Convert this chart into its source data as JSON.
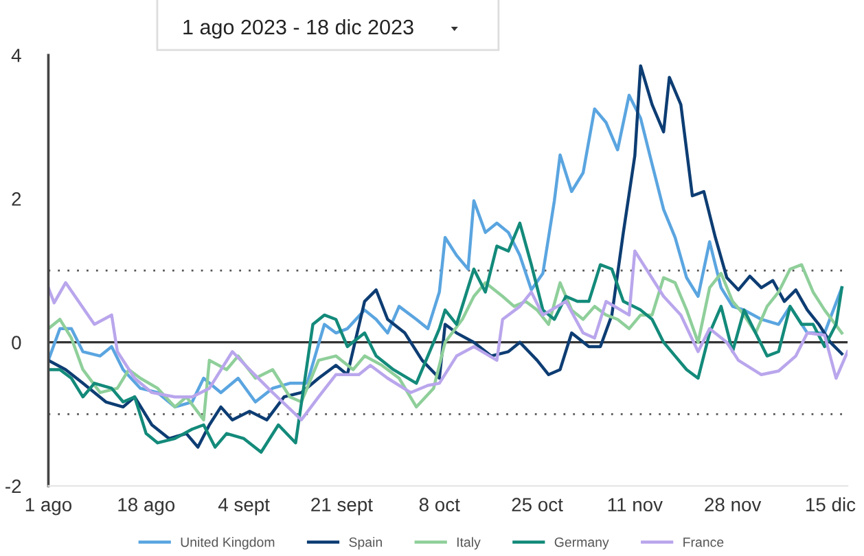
{
  "chart_data": {
    "type": "line",
    "title": "1 ago 2023 - 18 dic 2023",
    "xlim": [
      "2023-08-01",
      "2023-12-18"
    ],
    "xticks": [
      {
        "value": "2023-08-01",
        "label": "1 ago"
      },
      {
        "value": "2023-08-18",
        "label": "18 ago"
      },
      {
        "value": "2023-09-04",
        "label": "4 sept"
      },
      {
        "value": "2023-09-21",
        "label": "21 sept"
      },
      {
        "value": "2023-10-08",
        "label": "8 oct"
      },
      {
        "value": "2023-10-25",
        "label": "25 oct"
      },
      {
        "value": "2023-11-11",
        "label": "11 nov"
      },
      {
        "value": "2023-11-28",
        "label": "28 nov"
      },
      {
        "value": "2023-12-15",
        "label": "15 dic"
      }
    ],
    "ylim": [
      -2,
      4
    ],
    "yticks": [
      -2,
      0,
      2,
      4
    ],
    "grid": false,
    "legend": "bottom",
    "marker": "none",
    "line_style": "solid",
    "ref_lines": [
      {
        "axis": "y",
        "value": 0,
        "color": "#333333",
        "line_style": "solid"
      },
      {
        "axis": "y",
        "value": 1,
        "color": "#555555",
        "line_style": "dotted"
      },
      {
        "axis": "y",
        "value": -1,
        "color": "#555555",
        "line_style": "dotted"
      }
    ],
    "series": [
      {
        "name": "United Kingdom",
        "color": "#5aa5e0",
        "x": [
          "2023-08-01",
          "2023-08-03",
          "2023-08-05",
          "2023-08-07",
          "2023-08-10",
          "2023-08-12",
          "2023-08-14",
          "2023-08-17",
          "2023-08-20",
          "2023-08-23",
          "2023-08-26",
          "2023-08-28",
          "2023-08-31",
          "2023-09-03",
          "2023-09-06",
          "2023-09-09",
          "2023-09-12",
          "2023-09-15",
          "2023-09-18",
          "2023-09-20",
          "2023-09-22",
          "2023-09-25",
          "2023-09-27",
          "2023-09-29",
          "2023-10-01",
          "2023-10-04",
          "2023-10-06",
          "2023-10-08",
          "2023-10-09",
          "2023-10-11",
          "2023-10-13",
          "2023-10-14",
          "2023-10-16",
          "2023-10-18",
          "2023-10-20",
          "2023-10-22",
          "2023-10-24",
          "2023-10-26",
          "2023-10-28",
          "2023-10-29",
          "2023-10-31",
          "2023-11-02",
          "2023-11-04",
          "2023-11-06",
          "2023-11-08",
          "2023-11-10",
          "2023-11-12",
          "2023-11-14",
          "2023-11-16",
          "2023-11-18",
          "2023-11-20",
          "2023-11-22",
          "2023-11-24",
          "2023-11-26",
          "2023-11-28",
          "2023-11-30",
          "2023-12-03",
          "2023-12-06",
          "2023-12-08",
          "2023-12-11",
          "2023-12-14",
          "2023-12-17"
        ],
        "values": [
          -0.25,
          0.19,
          0.19,
          -0.13,
          -0.19,
          -0.06,
          -0.38,
          -0.64,
          -0.7,
          -0.9,
          -0.83,
          -0.5,
          -0.7,
          -0.5,
          -0.83,
          -0.64,
          -0.57,
          -0.57,
          0.25,
          0.13,
          0.19,
          0.45,
          0.32,
          0.13,
          0.5,
          0.32,
          0.19,
          0.7,
          1.46,
          1.21,
          1.02,
          1.97,
          1.53,
          1.66,
          1.53,
          1.21,
          0.73,
          0.96,
          1.97,
          2.61,
          2.1,
          2.36,
          3.25,
          3.06,
          2.68,
          3.44,
          3.12,
          2.48,
          1.85,
          1.46,
          0.9,
          0.64,
          1.4,
          0.76,
          0.5,
          0.45,
          0.32,
          0.25,
          0.5,
          0.13,
          0.13,
          0.76
        ]
      },
      {
        "name": "Spain",
        "color": "#0d3d73",
        "x": [
          "2023-08-01",
          "2023-08-04",
          "2023-08-07",
          "2023-08-11",
          "2023-08-14",
          "2023-08-16",
          "2023-08-19",
          "2023-08-22",
          "2023-08-25",
          "2023-08-27",
          "2023-08-29",
          "2023-08-31",
          "2023-09-02",
          "2023-09-05",
          "2023-09-08",
          "2023-09-11",
          "2023-09-14",
          "2023-09-17",
          "2023-09-20",
          "2023-09-22",
          "2023-09-25",
          "2023-09-27",
          "2023-09-29",
          "2023-10-02",
          "2023-10-05",
          "2023-10-08",
          "2023-10-09",
          "2023-10-11",
          "2023-10-14",
          "2023-10-17",
          "2023-10-20",
          "2023-10-22",
          "2023-10-25",
          "2023-10-27",
          "2023-10-29",
          "2023-10-31",
          "2023-11-03",
          "2023-11-05",
          "2023-11-07",
          "2023-11-09",
          "2023-11-11",
          "2023-11-12",
          "2023-11-14",
          "2023-11-16",
          "2023-11-17",
          "2023-11-19",
          "2023-11-21",
          "2023-11-23",
          "2023-11-25",
          "2023-11-27",
          "2023-11-29",
          "2023-12-01",
          "2023-12-03",
          "2023-12-05",
          "2023-12-07",
          "2023-12-09",
          "2023-12-11",
          "2023-12-13",
          "2023-12-15",
          "2023-12-17"
        ],
        "values": [
          -0.25,
          -0.38,
          -0.57,
          -0.83,
          -0.9,
          -0.76,
          -1.15,
          -1.34,
          -1.27,
          -1.46,
          -1.15,
          -0.9,
          -1.08,
          -0.96,
          -1.08,
          -0.76,
          -0.7,
          -0.5,
          -0.32,
          -0.45,
          0.57,
          0.73,
          0.32,
          0.13,
          -0.25,
          -0.5,
          0.25,
          0.13,
          0,
          -0.19,
          -0.13,
          0,
          -0.25,
          -0.45,
          -0.38,
          0.13,
          -0.06,
          -0.06,
          0.38,
          1.53,
          2.6,
          3.85,
          3.31,
          2.93,
          3.69,
          3.31,
          2.04,
          2.1,
          1.46,
          0.9,
          0.73,
          0.92,
          0.76,
          0.86,
          0.57,
          0.73,
          0.45,
          0.25,
          0,
          -0.16
        ]
      },
      {
        "name": "Italy",
        "color": "#8fcf9a",
        "x": [
          "2023-08-01",
          "2023-08-03",
          "2023-08-05",
          "2023-08-07",
          "2023-08-10",
          "2023-08-13",
          "2023-08-15",
          "2023-08-17",
          "2023-08-20",
          "2023-08-23",
          "2023-08-25",
          "2023-08-28",
          "2023-08-29",
          "2023-09-01",
          "2023-09-03",
          "2023-09-06",
          "2023-09-09",
          "2023-09-12",
          "2023-09-14",
          "2023-09-17",
          "2023-09-20",
          "2023-09-23",
          "2023-09-25",
          "2023-09-28",
          "2023-10-01",
          "2023-10-04",
          "2023-10-07",
          "2023-10-09",
          "2023-10-12",
          "2023-10-14",
          "2023-10-16",
          "2023-10-19",
          "2023-10-21",
          "2023-10-23",
          "2023-10-25",
          "2023-10-27",
          "2023-10-29",
          "2023-10-31",
          "2023-11-02",
          "2023-11-04",
          "2023-11-06",
          "2023-11-08",
          "2023-11-10",
          "2023-11-12",
          "2023-11-14",
          "2023-11-16",
          "2023-11-18",
          "2023-11-20",
          "2023-11-22",
          "2023-11-24",
          "2023-11-26",
          "2023-11-28",
          "2023-11-30",
          "2023-12-02",
          "2023-12-04",
          "2023-12-06",
          "2023-12-08",
          "2023-12-10",
          "2023-12-12",
          "2023-12-14",
          "2023-12-17"
        ],
        "values": [
          0.19,
          0.32,
          0.06,
          -0.38,
          -0.7,
          -0.64,
          -0.38,
          -0.5,
          -0.64,
          -0.9,
          -0.76,
          -1.08,
          -0.25,
          -0.38,
          -0.19,
          -0.5,
          -0.38,
          -0.76,
          -0.83,
          -0.25,
          -0.19,
          -0.38,
          -0.19,
          -0.32,
          -0.5,
          -0.9,
          -0.64,
          0,
          0.32,
          0.64,
          0.83,
          0.64,
          0.5,
          0.57,
          0.45,
          0.25,
          0.83,
          0.45,
          0.32,
          0.5,
          0.38,
          0.32,
          0.19,
          0.38,
          0.38,
          0.9,
          0.83,
          0.45,
          0,
          0.76,
          0.96,
          0.57,
          0.38,
          0.13,
          0.5,
          0.7,
          1.02,
          1.08,
          0.7,
          0.45,
          0.13
        ]
      },
      {
        "name": "Germany",
        "color": "#138a7a",
        "x": [
          "2023-08-01",
          "2023-08-03",
          "2023-08-05",
          "2023-08-07",
          "2023-08-09",
          "2023-08-12",
          "2023-08-14",
          "2023-08-16",
          "2023-08-18",
          "2023-08-20",
          "2023-08-23",
          "2023-08-26",
          "2023-08-28",
          "2023-08-30",
          "2023-09-01",
          "2023-09-04",
          "2023-09-07",
          "2023-09-10",
          "2023-09-13",
          "2023-09-16",
          "2023-09-18",
          "2023-09-20",
          "2023-09-22",
          "2023-09-25",
          "2023-09-27",
          "2023-09-30",
          "2023-10-04",
          "2023-10-06",
          "2023-10-08",
          "2023-10-09",
          "2023-10-11",
          "2023-10-14",
          "2023-10-16",
          "2023-10-18",
          "2023-10-20",
          "2023-10-22",
          "2023-10-24",
          "2023-10-26",
          "2023-10-28",
          "2023-10-30",
          "2023-11-01",
          "2023-11-03",
          "2023-11-05",
          "2023-11-07",
          "2023-11-09",
          "2023-11-12",
          "2023-11-14",
          "2023-11-16",
          "2023-11-18",
          "2023-11-20",
          "2023-11-22",
          "2023-11-24",
          "2023-11-26",
          "2023-11-28",
          "2023-11-30",
          "2023-12-02",
          "2023-12-04",
          "2023-12-06",
          "2023-12-08",
          "2023-12-10",
          "2023-12-12",
          "2023-12-14",
          "2023-12-16",
          "2023-12-17"
        ],
        "values": [
          -0.38,
          -0.38,
          -0.5,
          -0.76,
          -0.57,
          -0.64,
          -0.83,
          -0.76,
          -1.27,
          -1.4,
          -1.34,
          -1.21,
          -1.15,
          -1.46,
          -1.27,
          -1.34,
          -1.53,
          -1.15,
          -1.4,
          0.25,
          0.38,
          0.32,
          -0.06,
          0.13,
          -0.19,
          -0.38,
          -0.57,
          -0.19,
          0.19,
          0.45,
          0.25,
          1.02,
          0.7,
          1.34,
          1.27,
          1.66,
          1.08,
          0.45,
          0.32,
          0.64,
          0.57,
          0.57,
          1.08,
          1.02,
          0.57,
          0.45,
          0.32,
          0,
          -0.19,
          -0.38,
          -0.5,
          0.13,
          0.5,
          -0.13,
          0.45,
          0.13,
          -0.19,
          -0.13,
          0.5,
          0.25,
          0.25,
          -0.06,
          0.25,
          0.76
        ]
      },
      {
        "name": "France",
        "color": "#b9a6ec",
        "x": [
          "2023-08-01",
          "2023-08-02",
          "2023-08-04",
          "2023-08-09",
          "2023-08-12",
          "2023-08-13",
          "2023-08-16",
          "2023-08-19",
          "2023-08-23",
          "2023-08-26",
          "2023-08-29",
          "2023-09-02",
          "2023-09-05",
          "2023-09-09",
          "2023-09-14",
          "2023-09-17",
          "2023-09-20",
          "2023-09-24",
          "2023-09-26",
          "2023-09-29",
          "2023-10-03",
          "2023-10-06",
          "2023-10-08",
          "2023-10-11",
          "2023-10-14",
          "2023-10-18",
          "2023-10-19",
          "2023-10-22",
          "2023-10-24",
          "2023-10-26",
          "2023-10-30",
          "2023-11-02",
          "2023-11-04",
          "2023-11-06",
          "2023-11-10",
          "2023-11-11",
          "2023-11-16",
          "2023-11-19",
          "2023-11-22",
          "2023-11-24",
          "2023-11-27",
          "2023-11-29",
          "2023-12-03",
          "2023-12-06",
          "2023-12-09",
          "2023-12-11",
          "2023-12-14",
          "2023-12-16",
          "2023-12-18"
        ],
        "values": [
          0.76,
          0.55,
          0.83,
          0.25,
          0.38,
          -0.13,
          -0.5,
          -0.7,
          -0.76,
          -0.76,
          -0.64,
          -0.13,
          -0.38,
          -0.7,
          -1.08,
          -0.76,
          -0.45,
          -0.45,
          -0.32,
          -0.5,
          -0.7,
          -0.6,
          -0.57,
          -0.19,
          -0.06,
          -0.25,
          0.32,
          0.5,
          0.7,
          0.38,
          0.57,
          0.13,
          0.06,
          0.57,
          0.38,
          1.27,
          0.64,
          0.38,
          -0.13,
          0.19,
          0,
          -0.25,
          -0.45,
          -0.4,
          -0.19,
          0.13,
          0.1,
          -0.5,
          -0.13
        ]
      }
    ]
  }
}
